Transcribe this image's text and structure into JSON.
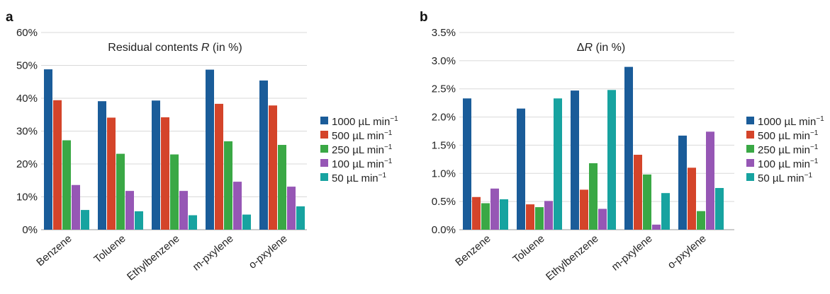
{
  "panels": [
    {
      "label": "a",
      "chart_data": {
        "type": "bar",
        "title": "Residual contents R (in %)",
        "title_parts": {
          "pre": "Residual contents ",
          "var": "R",
          "post": " (in %)"
        },
        "xlabel": "",
        "ylabel": "",
        "categories": [
          "Benzene",
          "Toluene",
          "Ethylbenzene",
          "m-pxylene",
          "o-pxylene"
        ],
        "ylim": [
          0,
          60
        ],
        "yticks": [
          0,
          10,
          20,
          30,
          40,
          50,
          60
        ],
        "ytick_labels": [
          "0%",
          "10%",
          "20%",
          "30%",
          "40%",
          "50%",
          "60%"
        ],
        "grid": true,
        "series": [
          {
            "name": "1000 µL min−1",
            "values": [
              48.8,
              39.1,
              39.3,
              48.7,
              45.4
            ]
          },
          {
            "name": "500 µL min−1",
            "values": [
              39.4,
              34.1,
              34.2,
              38.3,
              37.8
            ]
          },
          {
            "name": "250 µL min−1",
            "values": [
              27.2,
              23.1,
              22.9,
              26.9,
              25.8
            ]
          },
          {
            "name": "100 µL min−1",
            "values": [
              13.6,
              11.8,
              11.8,
              14.6,
              13.1
            ]
          },
          {
            "name": "50 µL min−1",
            "values": [
              6.0,
              5.6,
              4.4,
              4.6,
              7.1
            ]
          }
        ],
        "legend_position": "right"
      }
    },
    {
      "label": "b",
      "chart_data": {
        "type": "bar",
        "title": "ΔR (in %)",
        "title_parts": {
          "pre": "Δ",
          "var": "R",
          "post": " (in %)"
        },
        "xlabel": "",
        "ylabel": "",
        "categories": [
          "Benzene",
          "Toluene",
          "Ethylbenzene",
          "m-pxylene",
          "o-pxylene"
        ],
        "ylim": [
          0,
          3.5
        ],
        "yticks": [
          0,
          0.5,
          1.0,
          1.5,
          2.0,
          2.5,
          3.0,
          3.5
        ],
        "ytick_labels": [
          "0.0%",
          "0.5%",
          "1.0%",
          "1.5%",
          "2.0%",
          "2.5%",
          "3.0%",
          "3.5%"
        ],
        "grid": true,
        "series": [
          {
            "name": "1000 µL min−1",
            "values": [
              2.33,
              2.15,
              2.47,
              2.89,
              1.67
            ]
          },
          {
            "name": "500 µL min−1",
            "values": [
              0.58,
              0.45,
              0.71,
              1.33,
              1.1
            ]
          },
          {
            "name": "250 µL min−1",
            "values": [
              0.47,
              0.4,
              1.18,
              0.98,
              0.33
            ]
          },
          {
            "name": "100 µL min−1",
            "values": [
              0.73,
              0.51,
              0.37,
              0.09,
              1.74
            ]
          },
          {
            "name": "50 µL min−1",
            "values": [
              0.54,
              2.33,
              2.48,
              0.65,
              0.74
            ]
          }
        ],
        "legend_position": "right"
      }
    }
  ],
  "series_colors": [
    "#1a5c99",
    "#d4442a",
    "#3aa845",
    "#9657b5",
    "#17a3a0"
  ],
  "legend": {
    "entries": [
      {
        "value": "1000",
        "unit": "µL min",
        "exp": "−1"
      },
      {
        "value": "500",
        "unit": "µL min",
        "exp": "−1"
      },
      {
        "value": "250",
        "unit": "µL min",
        "exp": "−1"
      },
      {
        "value": "100",
        "unit": "µL min",
        "exp": "−1"
      },
      {
        "value": "50",
        "unit": "µL min",
        "exp": "−1"
      }
    ]
  }
}
